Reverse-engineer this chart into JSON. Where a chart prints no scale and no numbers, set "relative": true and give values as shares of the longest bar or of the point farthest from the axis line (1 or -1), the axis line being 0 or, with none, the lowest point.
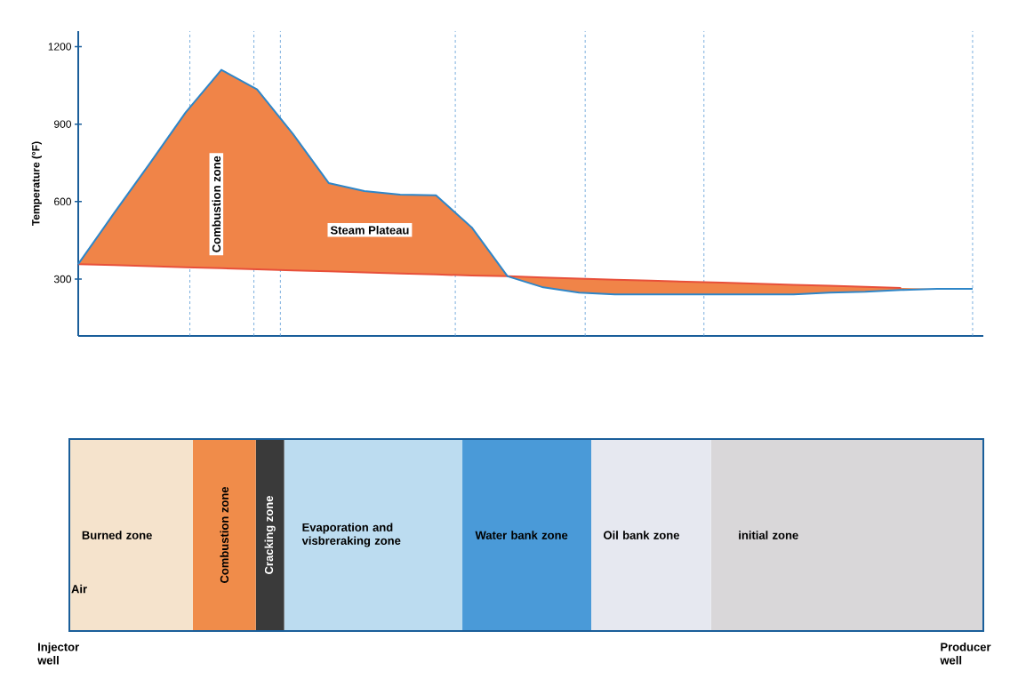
{
  "chart_data": [
    {
      "type": "area",
      "ylabel": "Temperature (°F)",
      "annotations": [
        "Combustion zone",
        "Steam Plateau"
      ],
      "categories": [
        null,
        null,
        null,
        null,
        null,
        null,
        null,
        null,
        null,
        null,
        null,
        null,
        null,
        null,
        null,
        null,
        null,
        null,
        null,
        null,
        null,
        null,
        null,
        null,
        null,
        null
      ],
      "series": [
        {
          "type": "line",
          "color": "#2e86c8",
          "values": [
            358,
            555,
            748,
            945,
            1110,
            1034,
            862,
            672,
            641,
            627,
            624,
            500,
            311,
            268,
            248,
            241,
            241,
            241,
            241,
            241,
            241,
            248,
            251,
            258,
            262,
            262
          ],
          "lower": [
            358,
            354,
            350,
            346,
            342,
            338,
            334,
            330,
            326,
            322,
            318,
            314,
            311,
            306,
            302,
            298,
            294,
            290,
            286,
            282,
            278,
            274,
            270,
            266,
            262,
            262
          ],
          "upper": [
            358,
            555,
            748,
            945,
            1110,
            1034,
            862,
            672,
            641,
            627,
            624,
            500,
            311,
            268,
            248,
            241,
            241,
            241,
            241,
            241,
            241,
            248,
            251,
            258,
            262,
            262
          ]
        },
        {
          "type": "line",
          "color": "#e8503a",
          "values": [
            358,
            354,
            350,
            346,
            342,
            338,
            334,
            330,
            326,
            322,
            318,
            314,
            311,
            306,
            302,
            298,
            294,
            290,
            286,
            282,
            278,
            274,
            270,
            266,
            null,
            null
          ]
        }
      ],
      "ylim": [
        80,
        1260
      ],
      "yticks": [
        300,
        600,
        900,
        1200
      ]
    },
    {
      "type": "bar",
      "orientation": "horizontal",
      "stacked": true,
      "relative": true,
      "categories": [
        null
      ],
      "series": [
        {
          "name": "Burned zone",
          "color": "#f5e3cc",
          "values": [
            0.135
          ]
        },
        {
          "name": "Combustion zone",
          "color": "#f08c4a",
          "values": [
            0.069
          ]
        },
        {
          "name": "Cracking zone",
          "color": "#3a3a3a",
          "values": [
            0.031
          ]
        },
        {
          "name": "Evaporation and visbreraking zone",
          "color": "#bcdcf0",
          "values": [
            0.195
          ]
        },
        {
          "name": "Water bank zone",
          "color": "#4a9ad8",
          "values": [
            0.141
          ]
        },
        {
          "name": "Oil bank zone",
          "color": "#e6e8f0",
          "values": [
            0.131
          ]
        },
        {
          "name": "initial zone",
          "color": "#d9d7d9",
          "values": [
            0.298
          ]
        }
      ],
      "annotations": [
        "Air",
        "Injector well",
        "Producer well"
      ]
    }
  ]
}
